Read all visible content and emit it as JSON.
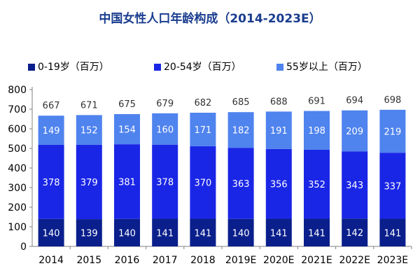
{
  "chart_data": {
    "type": "bar",
    "stacked": true,
    "title": "中国女性人口年龄构成（2014-2023E）",
    "xlabel": "",
    "ylabel": "",
    "categories": [
      "2014",
      "2015",
      "2016",
      "2017",
      "2018",
      "2019E",
      "2020E",
      "2021E",
      "2022E",
      "2023E"
    ],
    "series": [
      {
        "name": "0-19岁（百万）",
        "color": "#0a1f8c",
        "values": [
          140,
          139,
          140,
          141,
          141,
          140,
          141,
          141,
          142,
          141
        ]
      },
      {
        "name": "20-54岁（百万）",
        "color": "#1a26e6",
        "values": [
          378,
          379,
          381,
          378,
          370,
          363,
          356,
          352,
          343,
          337
        ]
      },
      {
        "name": "55岁以上（百万）",
        "color": "#4f83ee",
        "values": [
          149,
          152,
          154,
          160,
          171,
          182,
          191,
          198,
          209,
          219
        ]
      }
    ],
    "totals": [
      667,
      671,
      675,
      679,
      682,
      685,
      688,
      691,
      694,
      698
    ],
    "ylim": [
      0,
      800
    ],
    "yticks": [
      0,
      100,
      200,
      300,
      400,
      500,
      600,
      700,
      800
    ],
    "grid": false,
    "legend_position": "top"
  }
}
